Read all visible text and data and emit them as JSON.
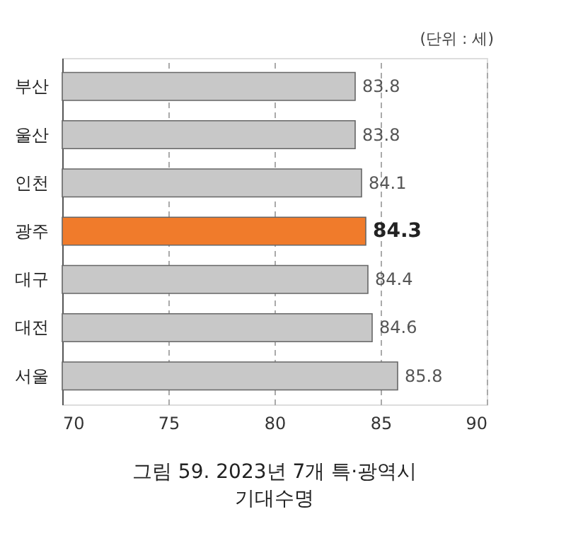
{
  "chart_data": {
    "type": "bar",
    "orientation": "horizontal",
    "title": "그림 59. 2023년 7개 특·광역시 기대수명",
    "annotations": [
      "(단위 : 세)"
    ],
    "categories": [
      "부산",
      "울산",
      "인천",
      "광주",
      "대구",
      "대전",
      "서울"
    ],
    "values": [
      83.8,
      83.8,
      84.1,
      84.3,
      84.4,
      84.6,
      85.8
    ],
    "colors": [
      "#c8c8c8",
      "#c8c8c8",
      "#c8c8c8",
      "#f07b2b",
      "#c8c8c8",
      "#c8c8c8",
      "#c8c8c8"
    ],
    "xlim": [
      70,
      90
    ],
    "xticks": [
      70,
      75,
      80,
      85,
      90
    ],
    "grid": "x",
    "data_labels": true
  }
}
